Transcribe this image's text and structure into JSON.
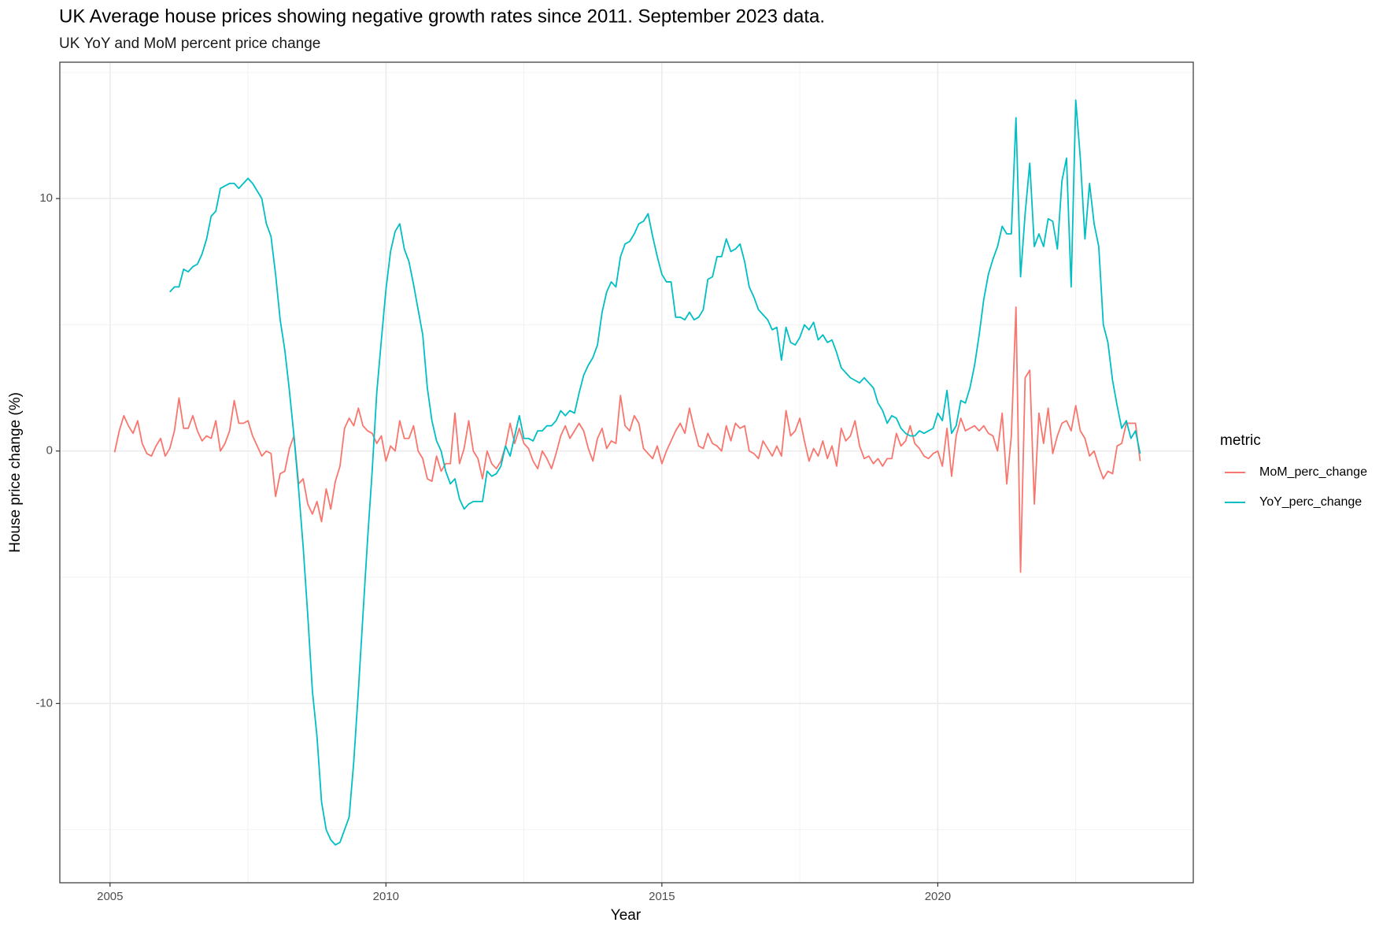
{
  "chart_data": {
    "type": "line",
    "title": "UK Average house prices showing negative growth rates since 2011. September 2023 data.",
    "subtitle": "UK YoY and MoM percent price change",
    "x_label": "Year",
    "y_label": "House price change (%)",
    "legend_title": "metric",
    "legend_position": "right",
    "grid": true,
    "xlim": [
      2004.09,
      2024.63
    ],
    "xticks": [
      2005,
      2010,
      2015,
      2020
    ],
    "ylim": [
      -17.1,
      15.4
    ],
    "yticks": [
      -10,
      0,
      10
    ],
    "x": [
      2005.083,
      2005.167,
      2005.25,
      2005.333,
      2005.417,
      2005.5,
      2005.583,
      2005.667,
      2005.75,
      2005.833,
      2005.917,
      2006,
      2006.083,
      2006.167,
      2006.25,
      2006.333,
      2006.417,
      2006.5,
      2006.583,
      2006.667,
      2006.75,
      2006.833,
      2006.917,
      2007,
      2007.083,
      2007.167,
      2007.25,
      2007.333,
      2007.417,
      2007.5,
      2007.583,
      2007.667,
      2007.75,
      2007.833,
      2007.917,
      2008,
      2008.083,
      2008.167,
      2008.25,
      2008.333,
      2008.417,
      2008.5,
      2008.583,
      2008.667,
      2008.75,
      2008.833,
      2008.917,
      2009,
      2009.083,
      2009.167,
      2009.25,
      2009.333,
      2009.417,
      2009.5,
      2009.583,
      2009.667,
      2009.75,
      2009.833,
      2009.917,
      2010,
      2010.083,
      2010.167,
      2010.25,
      2010.333,
      2010.417,
      2010.5,
      2010.583,
      2010.667,
      2010.75,
      2010.833,
      2010.917,
      2011,
      2011.083,
      2011.167,
      2011.25,
      2011.333,
      2011.417,
      2011.5,
      2011.583,
      2011.667,
      2011.75,
      2011.833,
      2011.917,
      2012,
      2012.083,
      2012.167,
      2012.25,
      2012.333,
      2012.417,
      2012.5,
      2012.583,
      2012.667,
      2012.75,
      2012.833,
      2012.917,
      2013,
      2013.083,
      2013.167,
      2013.25,
      2013.333,
      2013.417,
      2013.5,
      2013.583,
      2013.667,
      2013.75,
      2013.833,
      2013.917,
      2014,
      2014.083,
      2014.167,
      2014.25,
      2014.333,
      2014.417,
      2014.5,
      2014.583,
      2014.667,
      2014.75,
      2014.833,
      2014.917,
      2015,
      2015.083,
      2015.167,
      2015.25,
      2015.333,
      2015.417,
      2015.5,
      2015.583,
      2015.667,
      2015.75,
      2015.833,
      2015.917,
      2016,
      2016.083,
      2016.167,
      2016.25,
      2016.333,
      2016.417,
      2016.5,
      2016.583,
      2016.667,
      2016.75,
      2016.833,
      2016.917,
      2017,
      2017.083,
      2017.167,
      2017.25,
      2017.333,
      2017.417,
      2017.5,
      2017.583,
      2017.667,
      2017.75,
      2017.833,
      2017.917,
      2018,
      2018.083,
      2018.167,
      2018.25,
      2018.333,
      2018.417,
      2018.5,
      2018.583,
      2018.667,
      2018.75,
      2018.833,
      2018.917,
      2019,
      2019.083,
      2019.167,
      2019.25,
      2019.333,
      2019.417,
      2019.5,
      2019.583,
      2019.667,
      2019.75,
      2019.833,
      2019.917,
      2020,
      2020.083,
      2020.167,
      2020.25,
      2020.333,
      2020.417,
      2020.5,
      2020.583,
      2020.667,
      2020.75,
      2020.833,
      2020.917,
      2021,
      2021.083,
      2021.167,
      2021.25,
      2021.333,
      2021.417,
      2021.5,
      2021.583,
      2021.667,
      2021.75,
      2021.833,
      2021.917,
      2022,
      2022.083,
      2022.167,
      2022.25,
      2022.333,
      2022.417,
      2022.5,
      2022.583,
      2022.667,
      2022.75,
      2022.833,
      2022.917,
      2023,
      2023.083,
      2023.167,
      2023.25,
      2023.333,
      2023.417,
      2023.5,
      2023.583,
      2023.667
    ],
    "series": [
      {
        "name": "MoM_perc_change",
        "color": "#F8766D",
        "values": [
          -0.05,
          0.8,
          1.4,
          1.0,
          0.7,
          1.2,
          0.3,
          -0.1,
          -0.2,
          0.2,
          0.5,
          -0.2,
          0.1,
          0.8,
          2.1,
          0.9,
          0.9,
          1.4,
          0.8,
          0.4,
          0.6,
          0.5,
          1.2,
          0.0,
          0.3,
          0.8,
          2.0,
          1.1,
          1.1,
          1.2,
          0.6,
          0.2,
          -0.2,
          0.0,
          -0.1,
          -1.8,
          -0.9,
          -0.8,
          0.1,
          0.6,
          -1.3,
          -1.1,
          -2.1,
          -2.5,
          -2.0,
          -2.8,
          -1.5,
          -2.3,
          -1.2,
          -0.6,
          0.9,
          1.3,
          1.0,
          1.7,
          1.0,
          0.8,
          0.7,
          0.3,
          0.6,
          -0.4,
          0.2,
          0.0,
          1.2,
          0.5,
          0.5,
          1.0,
          0.0,
          -0.3,
          -1.1,
          -1.2,
          -0.2,
          -0.8,
          -0.5,
          -0.5,
          1.5,
          -0.5,
          0.1,
          1.2,
          0.0,
          -0.3,
          -1.1,
          0.0,
          -0.5,
          -0.7,
          -0.4,
          0.2,
          1.1,
          0.3,
          0.9,
          0.3,
          0.1,
          -0.4,
          -0.7,
          0.0,
          -0.3,
          -0.7,
          -0.1,
          0.6,
          1.0,
          0.5,
          0.8,
          1.1,
          0.8,
          0.1,
          -0.4,
          0.5,
          0.9,
          0.1,
          0.4,
          0.3,
          2.2,
          1.0,
          0.8,
          1.4,
          1.1,
          0.1,
          -0.1,
          -0.3,
          0.2,
          -0.5,
          0.0,
          0.4,
          0.8,
          1.1,
          0.7,
          1.7,
          0.9,
          0.2,
          0.1,
          0.7,
          0.3,
          0.2,
          0.0,
          1.0,
          0.4,
          1.1,
          0.9,
          1.0,
          0.0,
          -0.1,
          -0.3,
          0.4,
          0.1,
          -0.2,
          0.2,
          -0.2,
          1.6,
          0.6,
          0.8,
          1.3,
          0.4,
          -0.4,
          0.1,
          -0.2,
          0.4,
          -0.3,
          0.2,
          -0.6,
          0.9,
          0.4,
          0.6,
          1.2,
          0.2,
          -0.3,
          -0.2,
          -0.5,
          -0.3,
          -0.6,
          -0.3,
          -0.3,
          0.7,
          0.2,
          0.4,
          1.0,
          0.3,
          0.1,
          -0.2,
          -0.3,
          -0.1,
          0.0,
          -0.6,
          0.9,
          -1.0,
          0.6,
          1.3,
          0.8,
          0.9,
          1.0,
          0.8,
          1.0,
          0.7,
          0.6,
          0.0,
          1.5,
          -1.3,
          0.6,
          5.7,
          -4.8,
          2.9,
          3.2,
          -2.1,
          1.5,
          0.3,
          1.7,
          -0.1,
          0.6,
          1.1,
          1.2,
          0.8,
          1.8,
          0.8,
          0.5,
          -0.2,
          0.0,
          -0.6,
          -1.1,
          -0.8,
          -0.9,
          0.2,
          0.3,
          1.1,
          1.1,
          1.1,
          -0.4
        ]
      },
      {
        "name": "YoY_perc_change",
        "color": "#00BFC4",
        "values": [
          null,
          null,
          null,
          null,
          null,
          null,
          null,
          null,
          null,
          null,
          null,
          null,
          6.3,
          6.5,
          6.5,
          7.2,
          7.1,
          7.3,
          7.4,
          7.8,
          8.4,
          9.3,
          9.5,
          10.4,
          10.5,
          10.6,
          10.6,
          10.4,
          10.6,
          10.8,
          10.6,
          10.3,
          10.0,
          9.0,
          8.5,
          7.0,
          5.2,
          4.0,
          2.4,
          0.6,
          -1.5,
          -3.8,
          -6.5,
          -9.5,
          -11.3,
          -13.9,
          -15.0,
          -15.4,
          -15.6,
          -15.5,
          -15.0,
          -14.5,
          -12.3,
          -9.5,
          -6.5,
          -3.5,
          -0.8,
          2.3,
          4.4,
          6.4,
          7.9,
          8.7,
          9.0,
          8.0,
          7.5,
          6.6,
          5.6,
          4.6,
          2.5,
          1.2,
          0.4,
          0.0,
          -0.8,
          -1.3,
          -1.1,
          -1.9,
          -2.3,
          -2.1,
          -2.0,
          -2.0,
          -2.0,
          -0.8,
          -1.0,
          -0.9,
          -0.6,
          0.2,
          -0.2,
          0.6,
          1.4,
          0.5,
          0.5,
          0.4,
          0.8,
          0.8,
          1.0,
          1.0,
          1.2,
          1.6,
          1.4,
          1.6,
          1.5,
          2.3,
          3.0,
          3.4,
          3.7,
          4.2,
          5.5,
          6.3,
          6.7,
          6.5,
          7.7,
          8.2,
          8.3,
          8.6,
          9.0,
          9.1,
          9.4,
          8.5,
          7.7,
          7.0,
          6.7,
          6.7,
          5.3,
          5.3,
          5.2,
          5.5,
          5.2,
          5.3,
          5.6,
          6.8,
          6.9,
          7.7,
          7.7,
          8.4,
          7.9,
          8.0,
          8.2,
          7.5,
          6.5,
          6.1,
          5.6,
          5.4,
          5.2,
          4.8,
          4.9,
          3.6,
          4.9,
          4.3,
          4.2,
          4.5,
          5.0,
          4.8,
          5.1,
          4.4,
          4.6,
          4.3,
          4.4,
          3.9,
          3.3,
          3.1,
          2.9,
          2.8,
          2.7,
          2.9,
          2.7,
          2.5,
          1.9,
          1.6,
          1.1,
          1.4,
          1.3,
          0.9,
          0.7,
          0.6,
          0.6,
          0.8,
          0.7,
          0.8,
          0.9,
          1.5,
          1.2,
          2.4,
          0.7,
          1.0,
          2.0,
          1.9,
          2.5,
          3.4,
          4.6,
          6.0,
          7.0,
          7.6,
          8.1,
          8.9,
          8.6,
          8.6,
          13.2,
          6.9,
          9.4,
          11.4,
          8.1,
          8.6,
          8.1,
          9.2,
          9.1,
          8.0,
          10.7,
          11.6,
          6.5,
          13.9,
          11.6,
          8.4,
          10.6,
          9.0,
          8.1,
          5.0,
          4.3,
          2.8,
          1.8,
          0.9,
          1.2,
          0.5,
          0.8,
          -0.1
        ]
      }
    ]
  }
}
